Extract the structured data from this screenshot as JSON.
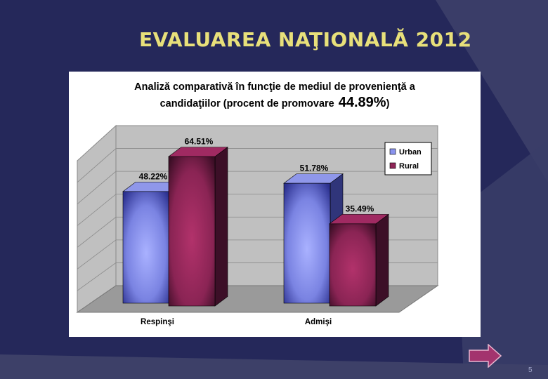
{
  "slide": {
    "title": "EVALUAREA NAŢIONALĂ 2012",
    "page_number": "5"
  },
  "colors": {
    "background": "#25285a",
    "title": "#e8e07a",
    "urban": "#8a93ee",
    "rural": "#8e2456",
    "arrow": "#a3336e"
  },
  "chart_data": {
    "type": "bar",
    "title_line1": "Analiză comparativă în funcţie de mediul de provenienţă a",
    "title_line2": "candidaţiilor (procent de promovare",
    "title_highlight": "44.89%",
    "title_close": ")",
    "categories": [
      "Respinşi",
      "Admişi"
    ],
    "series": [
      {
        "name": "Urban",
        "values": [
          48.22,
          51.78
        ],
        "labels": [
          "48.22%",
          "51.78%"
        ]
      },
      {
        "name": "Rural",
        "values": [
          64.51,
          35.49
        ],
        "labels": [
          "64.51%",
          "35.49%"
        ]
      }
    ],
    "ylim": [
      0,
      70
    ],
    "grid": true,
    "legend": "top-right"
  }
}
